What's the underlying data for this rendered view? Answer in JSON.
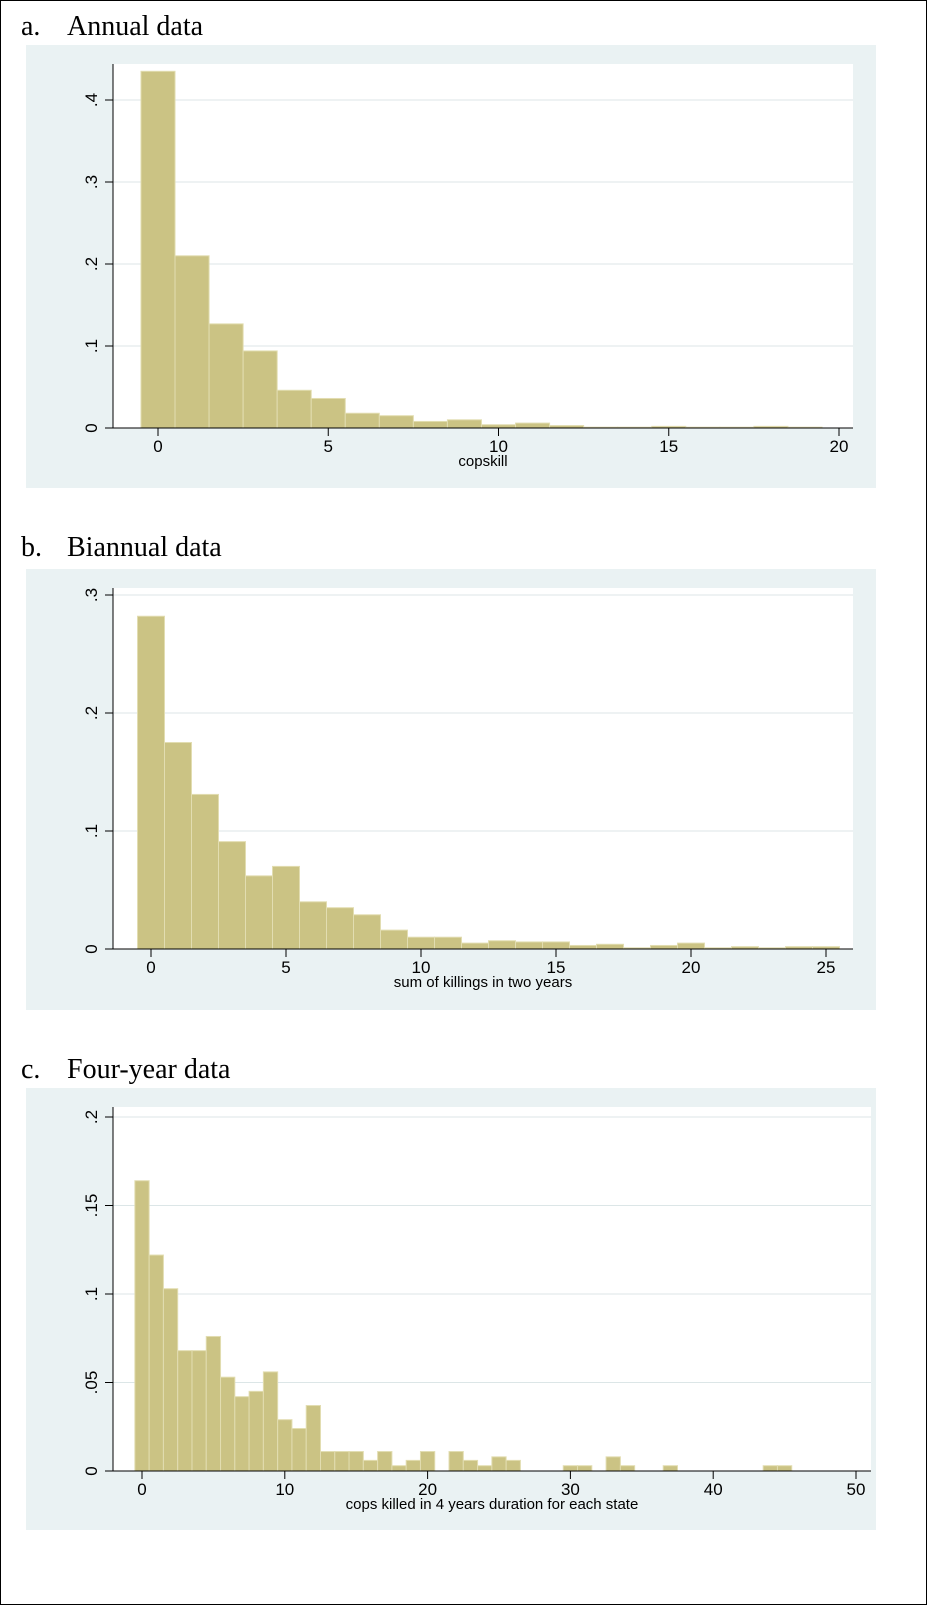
{
  "panels": [
    {
      "letter": "a.",
      "name": "Annual data"
    },
    {
      "letter": "b.",
      "name": "Biannual data"
    },
    {
      "letter": "c.",
      "name": "Four-year data"
    }
  ],
  "colors": {
    "bar_fill": "#CBC384",
    "bar_edge": "#E2DDB1",
    "plot_region": "#EAF2F3",
    "grid": "#DCE6E7"
  },
  "chart_data": [
    {
      "type": "bar",
      "title": "",
      "xlabel": "copskill",
      "ylabel": "",
      "bin_width": 1,
      "x": [
        0,
        1,
        2,
        3,
        4,
        5,
        6,
        7,
        8,
        9,
        10,
        11,
        12,
        13,
        14,
        15,
        16,
        17,
        18,
        19
      ],
      "values": [
        0.435,
        0.21,
        0.127,
        0.094,
        0.046,
        0.036,
        0.018,
        0.015,
        0.008,
        0.01,
        0.004,
        0.006,
        0.003,
        0.001,
        0.001,
        0.002,
        0.001,
        0.001,
        0.002,
        0.001
      ],
      "xlim": [
        -0.5,
        20
      ],
      "ylim": [
        0,
        0.4
      ],
      "x_ticks": [
        0,
        5,
        10,
        15,
        20
      ],
      "x_tick_labels": [
        "0",
        "5",
        "10",
        "15",
        "20"
      ],
      "y_ticks": [
        0,
        0.1,
        0.2,
        0.3,
        0.4
      ],
      "y_tick_labels": [
        "0",
        ".1",
        ".2",
        ".3",
        ".4"
      ],
      "grid": true
    },
    {
      "type": "bar",
      "title": "",
      "xlabel": "sum of killings in two years",
      "ylabel": "",
      "bin_width": 1,
      "x": [
        0,
        1,
        2,
        3,
        4,
        5,
        6,
        7,
        8,
        9,
        10,
        11,
        12,
        13,
        14,
        15,
        16,
        17,
        18,
        19,
        20,
        21,
        22,
        23,
        24,
        25
      ],
      "values": [
        0.282,
        0.175,
        0.131,
        0.091,
        0.062,
        0.07,
        0.04,
        0.035,
        0.029,
        0.016,
        0.01,
        0.01,
        0.005,
        0.007,
        0.006,
        0.006,
        0.003,
        0.004,
        0.001,
        0.003,
        0.005,
        0.001,
        0.002,
        0.001,
        0.002,
        0.002
      ],
      "xlim": [
        -0.6,
        26
      ],
      "ylim": [
        0,
        0.3
      ],
      "x_ticks": [
        0,
        5,
        10,
        15,
        20,
        25
      ],
      "x_tick_labels": [
        "0",
        "5",
        "10",
        "15",
        "20",
        "25"
      ],
      "y_ticks": [
        0,
        0.1,
        0.2,
        0.3
      ],
      "y_tick_labels": [
        "0",
        ".1",
        ".2",
        ".3"
      ],
      "grid": true
    },
    {
      "type": "bar",
      "title": "",
      "xlabel": "cops killed in 4 years duration for each state",
      "ylabel": "",
      "bin_width": 1,
      "x": [
        0,
        1,
        2,
        3,
        4,
        5,
        6,
        7,
        8,
        9,
        10,
        11,
        12,
        13,
        14,
        15,
        16,
        17,
        18,
        19,
        20,
        21,
        22,
        23,
        24,
        25,
        26,
        27,
        28,
        29,
        30,
        31,
        32,
        33,
        34,
        35,
        36,
        37,
        38,
        39,
        40,
        41,
        42,
        43,
        44,
        45
      ],
      "values": [
        0.164,
        0.122,
        0.103,
        0.068,
        0.068,
        0.076,
        0.053,
        0.042,
        0.045,
        0.056,
        0.029,
        0.024,
        0.037,
        0.011,
        0.011,
        0.011,
        0.006,
        0.011,
        0.003,
        0.006,
        0.011,
        0,
        0.011,
        0.006,
        0.003,
        0.008,
        0.006,
        0,
        0,
        0,
        0.003,
        0.003,
        0,
        0.008,
        0.003,
        0,
        0,
        0.003,
        0,
        0,
        0,
        0,
        0,
        0,
        0.003,
        0.003
      ],
      "xlim": [
        -0.5,
        51
      ],
      "ylim": [
        0,
        0.2
      ],
      "x_ticks": [
        0,
        10,
        20,
        30,
        40,
        50
      ],
      "x_tick_labels": [
        "0",
        "10",
        "20",
        "30",
        "40",
        "50"
      ],
      "y_ticks": [
        0,
        0.05,
        0.1,
        0.15,
        0.2
      ],
      "y_tick_labels": [
        "0",
        ".05",
        ".1",
        ".15",
        ".2"
      ],
      "grid": true
    }
  ]
}
